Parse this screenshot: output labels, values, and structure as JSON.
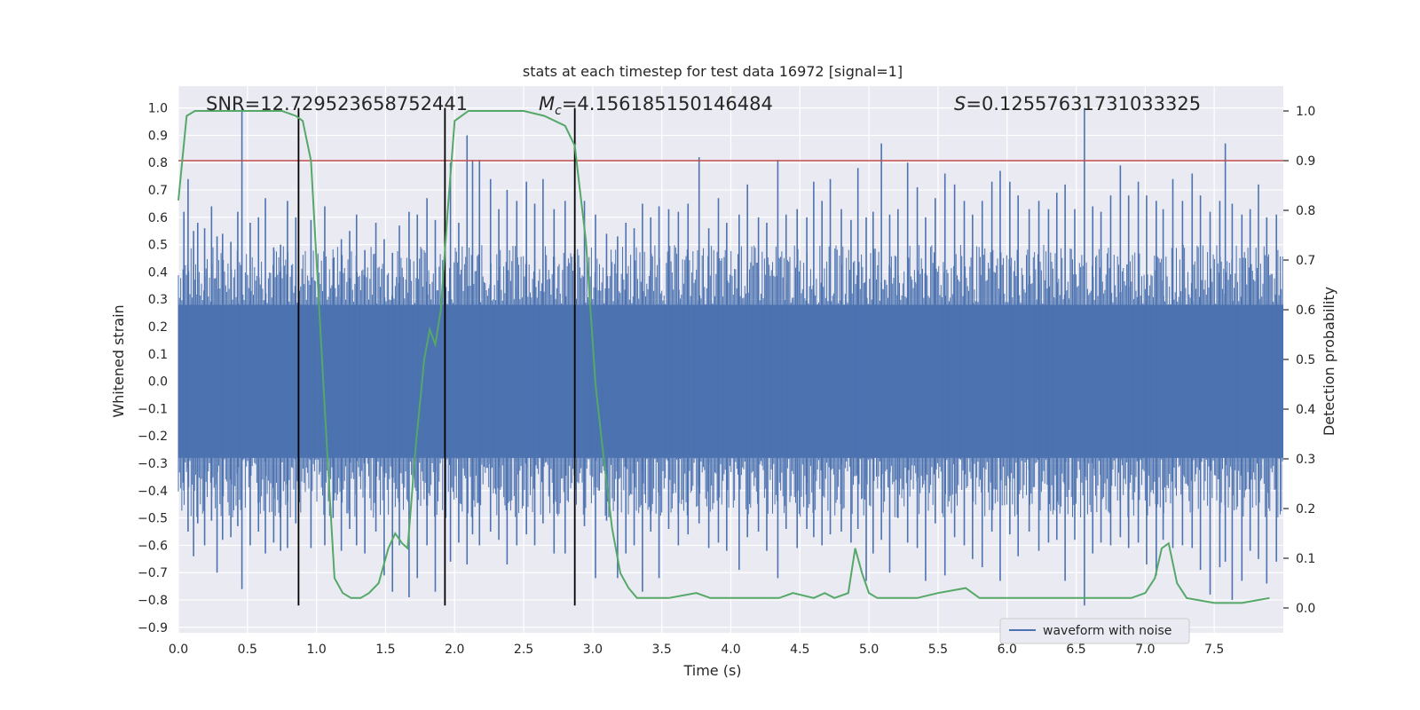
{
  "chart_data": {
    "type": "line",
    "title": "stats at each timestep for test data 16972 [signal=1]",
    "xlabel": "Time (s)",
    "ylabel_left": "Whitened strain",
    "ylabel_right": "Detection probability",
    "xlim": [
      0.0,
      8.0
    ],
    "ylim_left": [
      -0.92,
      1.08
    ],
    "ylim_right": [
      -0.05,
      1.05
    ],
    "x_ticks": [
      "0.0",
      "0.5",
      "1.0",
      "1.5",
      "2.0",
      "2.5",
      "3.0",
      "3.5",
      "4.0",
      "4.5",
      "5.0",
      "5.5",
      "6.0",
      "6.5",
      "7.0",
      "7.5"
    ],
    "y_ticks_left": [
      "1.0",
      "0.9",
      "0.8",
      "0.7",
      "0.6",
      "0.5",
      "0.4",
      "0.3",
      "0.2",
      "0.1",
      "0.0",
      "−0.1",
      "−0.2",
      "−0.3",
      "−0.4",
      "−0.5",
      "−0.6",
      "−0.7",
      "−0.8",
      "−0.9"
    ],
    "y_ticks_right": [
      "1.0",
      "0.9",
      "0.8",
      "0.7",
      "0.6",
      "0.5",
      "0.4",
      "0.3",
      "0.2",
      "0.1",
      "0.0"
    ],
    "grid": true,
    "legend": {
      "position": "lower-right",
      "entries": [
        "waveform with noise"
      ]
    },
    "annotations": {
      "snr": "SNR=12.729523658752441",
      "mc_symbol": "M",
      "mc_sub": "c",
      "mc_value": "=4.156185150146484",
      "s_symbol": "S",
      "s_value": "=0.12557631731033325"
    },
    "threshold_probability": 0.9,
    "vertical_lines_x": [
      0.87,
      1.93,
      2.87
    ],
    "vertical_lines_range": [
      -0.82,
      1.0
    ],
    "waveform": {
      "name": "waveform with noise",
      "color": "#4c72b0",
      "band_upper": 0.28,
      "band_lower": -0.28,
      "spikes": [
        [
          0.04,
          0.62,
          -0.4
        ],
        [
          0.07,
          0.74,
          -0.55
        ],
        [
          0.11,
          0.55,
          -0.64
        ],
        [
          0.14,
          0.58,
          -0.52
        ],
        [
          0.19,
          0.56,
          -0.6
        ],
        [
          0.24,
          0.64,
          -0.51
        ],
        [
          0.28,
          0.53,
          -0.7
        ],
        [
          0.32,
          0.54,
          -0.58
        ],
        [
          0.38,
          0.51,
          -0.57
        ],
        [
          0.43,
          0.62,
          -0.53
        ],
        [
          0.46,
          1.0,
          -0.76
        ],
        [
          0.52,
          0.58,
          -0.6
        ],
        [
          0.58,
          0.6,
          -0.55
        ],
        [
          0.63,
          0.67,
          -0.63
        ],
        [
          0.69,
          0.49,
          -0.59
        ],
        [
          0.74,
          0.5,
          -0.62
        ],
        [
          0.79,
          0.66,
          -0.61
        ],
        [
          0.85,
          0.6,
          -0.52
        ],
        [
          0.96,
          0.59,
          -0.61
        ],
        [
          1.06,
          0.64,
          -0.6
        ],
        [
          1.12,
          0.45,
          -0.5
        ],
        [
          1.18,
          0.52,
          -0.62
        ],
        [
          1.24,
          0.55,
          -0.54
        ],
        [
          1.29,
          0.61,
          -0.6
        ],
        [
          1.35,
          0.48,
          -0.63
        ],
        [
          1.43,
          0.58,
          -0.55
        ],
        [
          1.49,
          0.52,
          -0.71
        ],
        [
          1.55,
          0.47,
          -0.77
        ],
        [
          1.6,
          0.57,
          -0.6
        ],
        [
          1.67,
          0.62,
          -0.79
        ],
        [
          1.73,
          0.61,
          -0.72
        ],
        [
          1.8,
          0.67,
          -0.6
        ],
        [
          1.86,
          0.59,
          -0.77
        ],
        [
          1.97,
          0.8,
          -0.66
        ],
        [
          2.03,
          0.58,
          -0.59
        ],
        [
          2.09,
          0.9,
          -0.67
        ],
        [
          2.13,
          0.81,
          -0.56
        ],
        [
          2.18,
          0.81,
          -0.6
        ],
        [
          2.26,
          0.74,
          -0.55
        ],
        [
          2.32,
          0.63,
          -0.58
        ],
        [
          2.38,
          0.7,
          -0.67
        ],
        [
          2.45,
          0.66,
          -0.6
        ],
        [
          2.52,
          0.73,
          -0.56
        ],
        [
          2.58,
          0.65,
          -0.6
        ],
        [
          2.64,
          0.74,
          -0.52
        ],
        [
          2.72,
          0.63,
          -0.63
        ],
        [
          2.8,
          0.66,
          -0.63
        ],
        [
          2.94,
          0.66,
          -0.53
        ],
        [
          3.02,
          0.61,
          -0.72
        ],
        [
          3.1,
          0.54,
          -0.51
        ],
        [
          3.18,
          0.53,
          -0.72
        ],
        [
          3.24,
          0.58,
          -0.63
        ],
        [
          3.3,
          0.56,
          -0.6
        ],
        [
          3.36,
          0.65,
          -0.77
        ],
        [
          3.42,
          0.6,
          -0.55
        ],
        [
          3.48,
          0.64,
          -0.72
        ],
        [
          3.55,
          0.63,
          -0.54
        ],
        [
          3.62,
          0.62,
          -0.6
        ],
        [
          3.69,
          0.65,
          -0.56
        ],
        [
          3.77,
          0.82,
          -0.52
        ],
        [
          3.84,
          0.56,
          -0.61
        ],
        [
          3.91,
          0.67,
          -0.59
        ],
        [
          3.97,
          0.58,
          -0.62
        ],
        [
          4.06,
          0.61,
          -0.69
        ],
        [
          4.12,
          0.72,
          -0.57
        ],
        [
          4.2,
          0.6,
          -0.55
        ],
        [
          4.26,
          0.58,
          -0.62
        ],
        [
          4.34,
          0.81,
          -0.72
        ],
        [
          4.4,
          0.61,
          -0.54
        ],
        [
          4.48,
          0.63,
          -0.61
        ],
        [
          4.55,
          0.6,
          -0.54
        ],
        [
          4.6,
          0.73,
          -0.57
        ],
        [
          4.66,
          0.66,
          -0.6
        ],
        [
          4.72,
          0.74,
          -0.56
        ],
        [
          4.8,
          0.63,
          -0.55
        ],
        [
          4.87,
          0.59,
          -0.59
        ],
        [
          4.92,
          0.78,
          -0.54
        ],
        [
          4.98,
          0.6,
          -0.73
        ],
        [
          5.03,
          0.62,
          -0.63
        ],
        [
          5.09,
          0.87,
          -0.58
        ],
        [
          5.15,
          0.61,
          -0.7
        ],
        [
          5.21,
          0.63,
          -0.5
        ],
        [
          5.28,
          0.8,
          -0.59
        ],
        [
          5.35,
          0.71,
          -0.61
        ],
        [
          5.41,
          0.6,
          -0.73
        ],
        [
          5.48,
          0.67,
          -0.52
        ],
        [
          5.55,
          0.76,
          -0.71
        ],
        [
          5.62,
          0.72,
          -0.57
        ],
        [
          5.69,
          0.66,
          -0.6
        ],
        [
          5.75,
          0.61,
          -0.65
        ],
        [
          5.82,
          0.66,
          -0.68
        ],
        [
          5.89,
          0.73,
          -0.55
        ],
        [
          5.95,
          0.77,
          -0.73
        ],
        [
          6.02,
          0.73,
          -0.56
        ],
        [
          6.08,
          0.68,
          -0.64
        ],
        [
          6.16,
          0.63,
          -0.55
        ],
        [
          6.23,
          0.66,
          -0.62
        ],
        [
          6.3,
          0.63,
          -0.59
        ],
        [
          6.36,
          0.69,
          -0.58
        ],
        [
          6.42,
          0.72,
          -0.73
        ],
        [
          6.49,
          0.63,
          -0.58
        ],
        [
          6.56,
          1.0,
          -0.82
        ],
        [
          6.62,
          0.64,
          -0.63
        ],
        [
          6.68,
          0.62,
          -0.59
        ],
        [
          6.75,
          0.68,
          -0.6
        ],
        [
          6.82,
          0.79,
          -0.57
        ],
        [
          6.88,
          0.68,
          -0.61
        ],
        [
          6.95,
          0.73,
          -0.59
        ],
        [
          7.01,
          0.68,
          -0.67
        ],
        [
          7.08,
          0.66,
          -0.71
        ],
        [
          7.13,
          0.63,
          -0.58
        ],
        [
          7.2,
          0.74,
          -0.61
        ],
        [
          7.27,
          0.66,
          -0.6
        ],
        [
          7.34,
          0.76,
          -0.61
        ],
        [
          7.4,
          0.68,
          -0.69
        ],
        [
          7.47,
          0.62,
          -0.78
        ],
        [
          7.54,
          0.66,
          -0.68
        ],
        [
          7.58,
          0.87,
          -0.66
        ],
        [
          7.63,
          0.65,
          -0.8
        ],
        [
          7.7,
          0.61,
          -0.73
        ],
        [
          7.76,
          0.63,
          -0.62
        ],
        [
          7.82,
          0.72,
          -0.65
        ],
        [
          7.88,
          0.6,
          -0.74
        ],
        [
          7.95,
          0.61,
          -0.66
        ]
      ]
    },
    "probability": {
      "color": "#55a868",
      "x": [
        0.0,
        0.06,
        0.12,
        0.25,
        0.5,
        0.75,
        0.85,
        0.9,
        0.96,
        1.03,
        1.08,
        1.13,
        1.19,
        1.25,
        1.32,
        1.38,
        1.45,
        1.52,
        1.57,
        1.62,
        1.66,
        1.72,
        1.78,
        1.82,
        1.86,
        1.9,
        1.95,
        2.0,
        2.1,
        2.3,
        2.5,
        2.65,
        2.8,
        2.87,
        2.95,
        3.02,
        3.08,
        3.14,
        3.2,
        3.26,
        3.32,
        3.4,
        3.55,
        3.75,
        3.85,
        4.0,
        4.2,
        4.35,
        4.45,
        4.6,
        4.68,
        4.75,
        4.85,
        4.9,
        4.95,
        5.0,
        5.06,
        5.2,
        5.35,
        5.5,
        5.7,
        5.8,
        5.95,
        6.5,
        6.7,
        6.9,
        7.0,
        7.07,
        7.12,
        7.17,
        7.23,
        7.3,
        7.5,
        7.7,
        7.9
      ],
      "y": [
        0.82,
        0.99,
        1.0,
        1.0,
        1.0,
        1.0,
        0.99,
        0.98,
        0.9,
        0.55,
        0.3,
        0.06,
        0.03,
        0.02,
        0.02,
        0.03,
        0.05,
        0.12,
        0.15,
        0.13,
        0.12,
        0.33,
        0.5,
        0.56,
        0.53,
        0.6,
        0.8,
        0.98,
        1.0,
        1.0,
        1.0,
        0.99,
        0.97,
        0.93,
        0.74,
        0.45,
        0.3,
        0.16,
        0.07,
        0.04,
        0.02,
        0.02,
        0.02,
        0.03,
        0.02,
        0.02,
        0.02,
        0.02,
        0.03,
        0.02,
        0.03,
        0.02,
        0.03,
        0.12,
        0.07,
        0.03,
        0.02,
        0.02,
        0.02,
        0.03,
        0.04,
        0.02,
        0.02,
        0.02,
        0.02,
        0.02,
        0.03,
        0.06,
        0.12,
        0.13,
        0.05,
        0.02,
        0.01,
        0.01,
        0.02
      ]
    }
  }
}
